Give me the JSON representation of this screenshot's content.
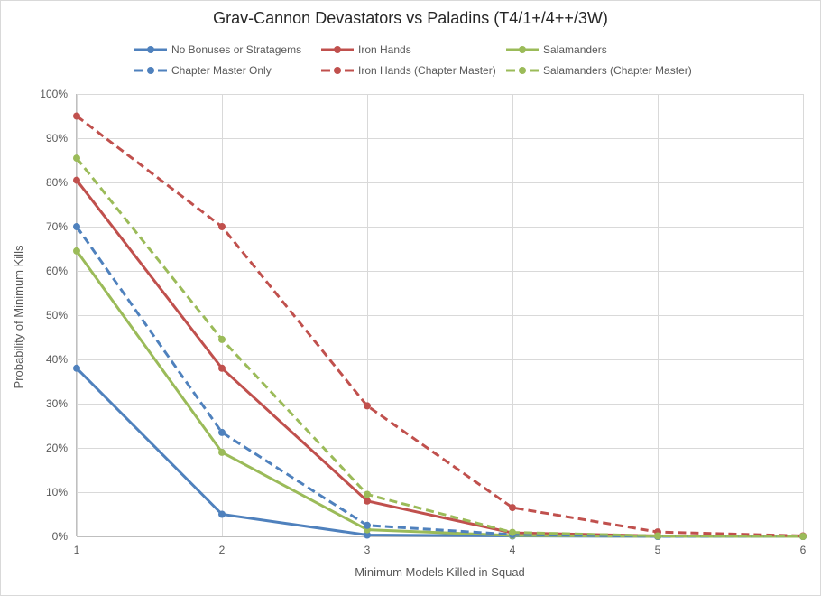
{
  "chart_data": {
    "type": "line",
    "title": "Grav-Cannon Devastators vs Paladins (T4/1+/4++/3W)",
    "xlabel": "Minimum Models Killed in Squad",
    "ylabel": "Probability of Minimum Kills",
    "x": [
      1,
      2,
      3,
      4,
      5,
      6
    ],
    "x_tick_labels": [
      "1",
      "2",
      "3",
      "4",
      "5",
      "6"
    ],
    "y_tick_labels": [
      "0%",
      "10%",
      "20%",
      "30%",
      "40%",
      "50%",
      "60%",
      "70%",
      "80%",
      "90%",
      "100%"
    ],
    "ylim": [
      0,
      100
    ],
    "ytick_step": 10,
    "grid": true,
    "legend_position": "top",
    "series": [
      {
        "name": "No Bonuses or Stratagems",
        "color": "#4F81BD",
        "dash": "solid",
        "values": [
          38,
          5,
          0.3,
          0.1,
          0,
          0
        ]
      },
      {
        "name": "Iron Hands",
        "color": "#C0504D",
        "dash": "solid",
        "values": [
          80.5,
          38,
          8,
          0.8,
          0.1,
          0
        ]
      },
      {
        "name": "Salamanders",
        "color": "#9BBB59",
        "dash": "solid",
        "values": [
          64.5,
          19,
          1.5,
          0.2,
          0,
          0
        ]
      },
      {
        "name": "Chapter Master Only",
        "color": "#4F81BD",
        "dash": "dashed",
        "values": [
          70,
          23.5,
          2.5,
          0.4,
          0,
          0
        ]
      },
      {
        "name": "Iron Hands (Chapter Master)",
        "color": "#C0504D",
        "dash": "dashed",
        "values": [
          95,
          70,
          29.5,
          6.5,
          1,
          0.1
        ]
      },
      {
        "name": "Salamanders (Chapter Master)",
        "color": "#9BBB59",
        "dash": "dashed",
        "values": [
          85.5,
          44.5,
          9.5,
          0.9,
          0.1,
          0
        ]
      }
    ],
    "colors": {
      "background": "#FFFFFF",
      "frame_border": "#D9D9D9",
      "gridline": "#D9D9D9",
      "axis_line": "#BFBFBF",
      "tick_label": "#595959",
      "axis_title": "#595959",
      "title": "#262626"
    }
  }
}
